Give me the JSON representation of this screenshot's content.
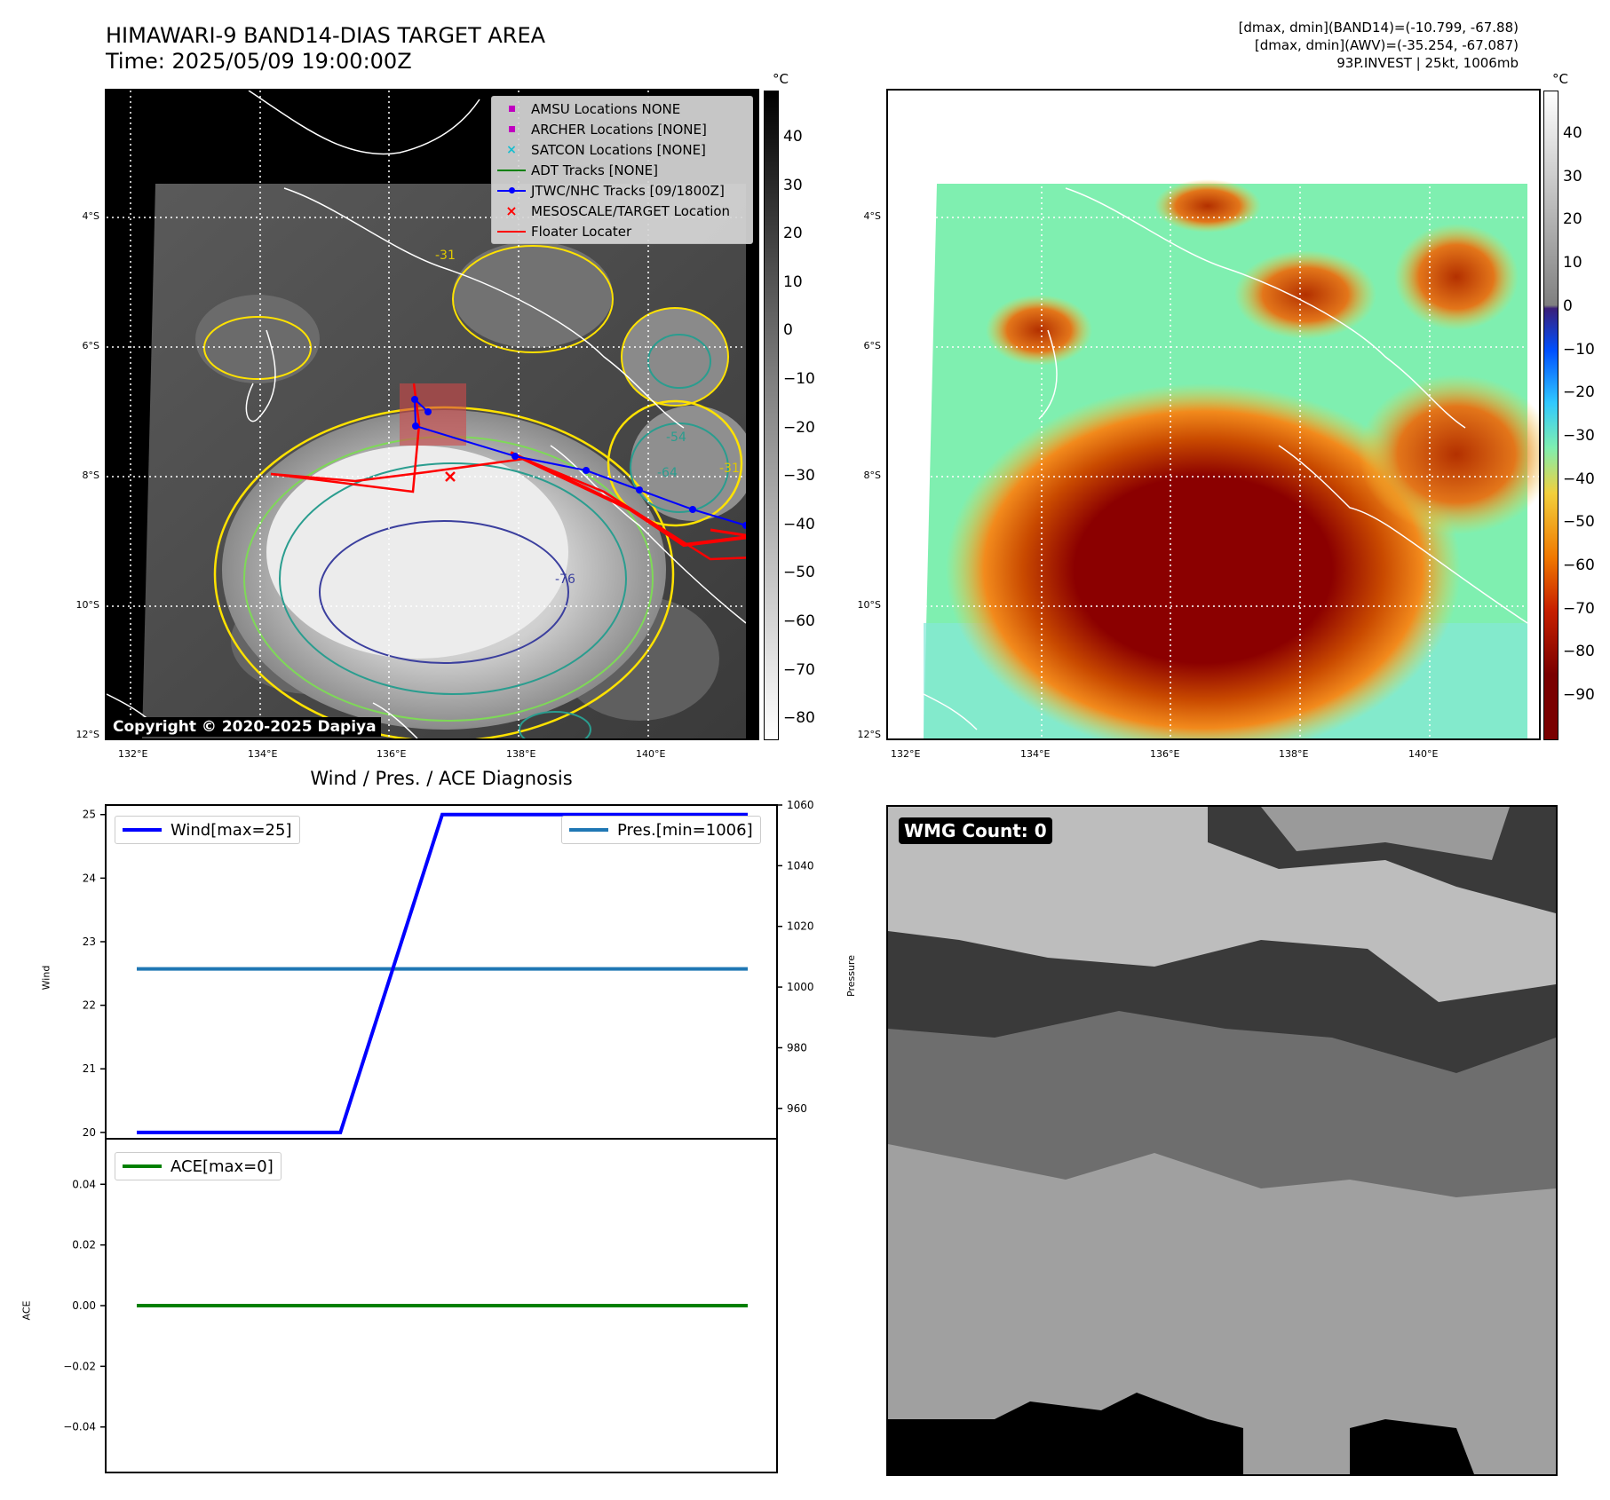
{
  "titles": {
    "line1": "HIMAWARI-9 BAND14-DIAS TARGET AREA",
    "line2": "Time: 2025/05/09 19:00:00Z",
    "info1": "[dmax, dmin](BAND14)=(-10.799, -67.88)",
    "info2": "[dmax, dmin](AWV)=(-35.254, -67.087)",
    "info3": "93P.INVEST | 25kt, 1006mb",
    "diag_title": "Wind / Pres. / ACE Diagnosis"
  },
  "map_axes": {
    "lon_ticks": [
      "132°E",
      "134°E",
      "136°E",
      "138°E",
      "140°E"
    ],
    "lat_ticks": [
      "4°S",
      "6°S",
      "8°S",
      "10°S",
      "12°S"
    ]
  },
  "colorbar_left": {
    "unit": "°C",
    "ticks": [
      "40",
      "30",
      "20",
      "10",
      "0",
      "−10",
      "−20",
      "−30",
      "−40",
      "−50",
      "−60",
      "−70",
      "−80"
    ]
  },
  "colorbar_right": {
    "unit": "°C",
    "ticks": [
      "40",
      "30",
      "20",
      "10",
      "0",
      "−10",
      "−20",
      "−30",
      "−40",
      "−50",
      "−60",
      "−70",
      "−80",
      "−90"
    ]
  },
  "legend": [
    {
      "label": "AMSU Locations NONE",
      "marker": "square",
      "color": "#c000c0"
    },
    {
      "label": "ARCHER Locations [NONE]",
      "marker": "square",
      "color": "#c000c0"
    },
    {
      "label": "SATCON Locations [NONE]",
      "marker": "x",
      "color": "#17becf"
    },
    {
      "label": "ADT Tracks [NONE]",
      "marker": "line",
      "color": "#008000"
    },
    {
      "label": "JTWC/NHC Tracks [09/1800Z]",
      "marker": "line-dot",
      "color": "#0000ff"
    },
    {
      "label": "MESOSCALE/TARGET Location",
      "marker": "x",
      "color": "#ff0000"
    },
    {
      "label": "Floater Locater",
      "marker": "line",
      "color": "#ff0000"
    }
  ],
  "contour_labels": [
    "-31",
    "-54",
    "-64",
    "-76",
    "-31"
  ],
  "copyright": "Copyright © 2020-2025 Dapiya",
  "wmg": {
    "label": "WMG Count: 0"
  },
  "chart_data": [
    {
      "type": "line",
      "title": "Wind / Pres. / ACE Diagnosis",
      "ylabel": "Wind",
      "ylim": [
        19.9,
        25.15
      ],
      "yticks": [
        "25",
        "24",
        "23",
        "22",
        "21",
        "20"
      ],
      "series": [
        {
          "name": "Wind[max=25]",
          "color": "#0000ff",
          "x": [
            0,
            1,
            2,
            3,
            4,
            5,
            6
          ],
          "values": [
            20,
            20,
            20,
            25,
            25,
            25,
            25
          ]
        }
      ]
    },
    {
      "type": "line",
      "ylabel": "Pressure",
      "ylim": [
        950,
        1060
      ],
      "yticks": [
        "1060",
        "1040",
        "1020",
        "1000",
        "980",
        "960"
      ],
      "series": [
        {
          "name": "Pres.[min=1006]",
          "color": "#1f77b4",
          "x": [
            0,
            6
          ],
          "values": [
            1006,
            1006
          ]
        }
      ]
    },
    {
      "type": "line",
      "ylabel": "ACE",
      "ylim": [
        -0.055,
        0.055
      ],
      "yticks": [
        "0.04",
        "0.02",
        "0.00",
        "−0.02",
        "−0.04"
      ],
      "series": [
        {
          "name": "ACE[max=0]",
          "color": "#008000",
          "x": [
            0,
            6
          ],
          "values": [
            0,
            0
          ]
        }
      ]
    }
  ]
}
